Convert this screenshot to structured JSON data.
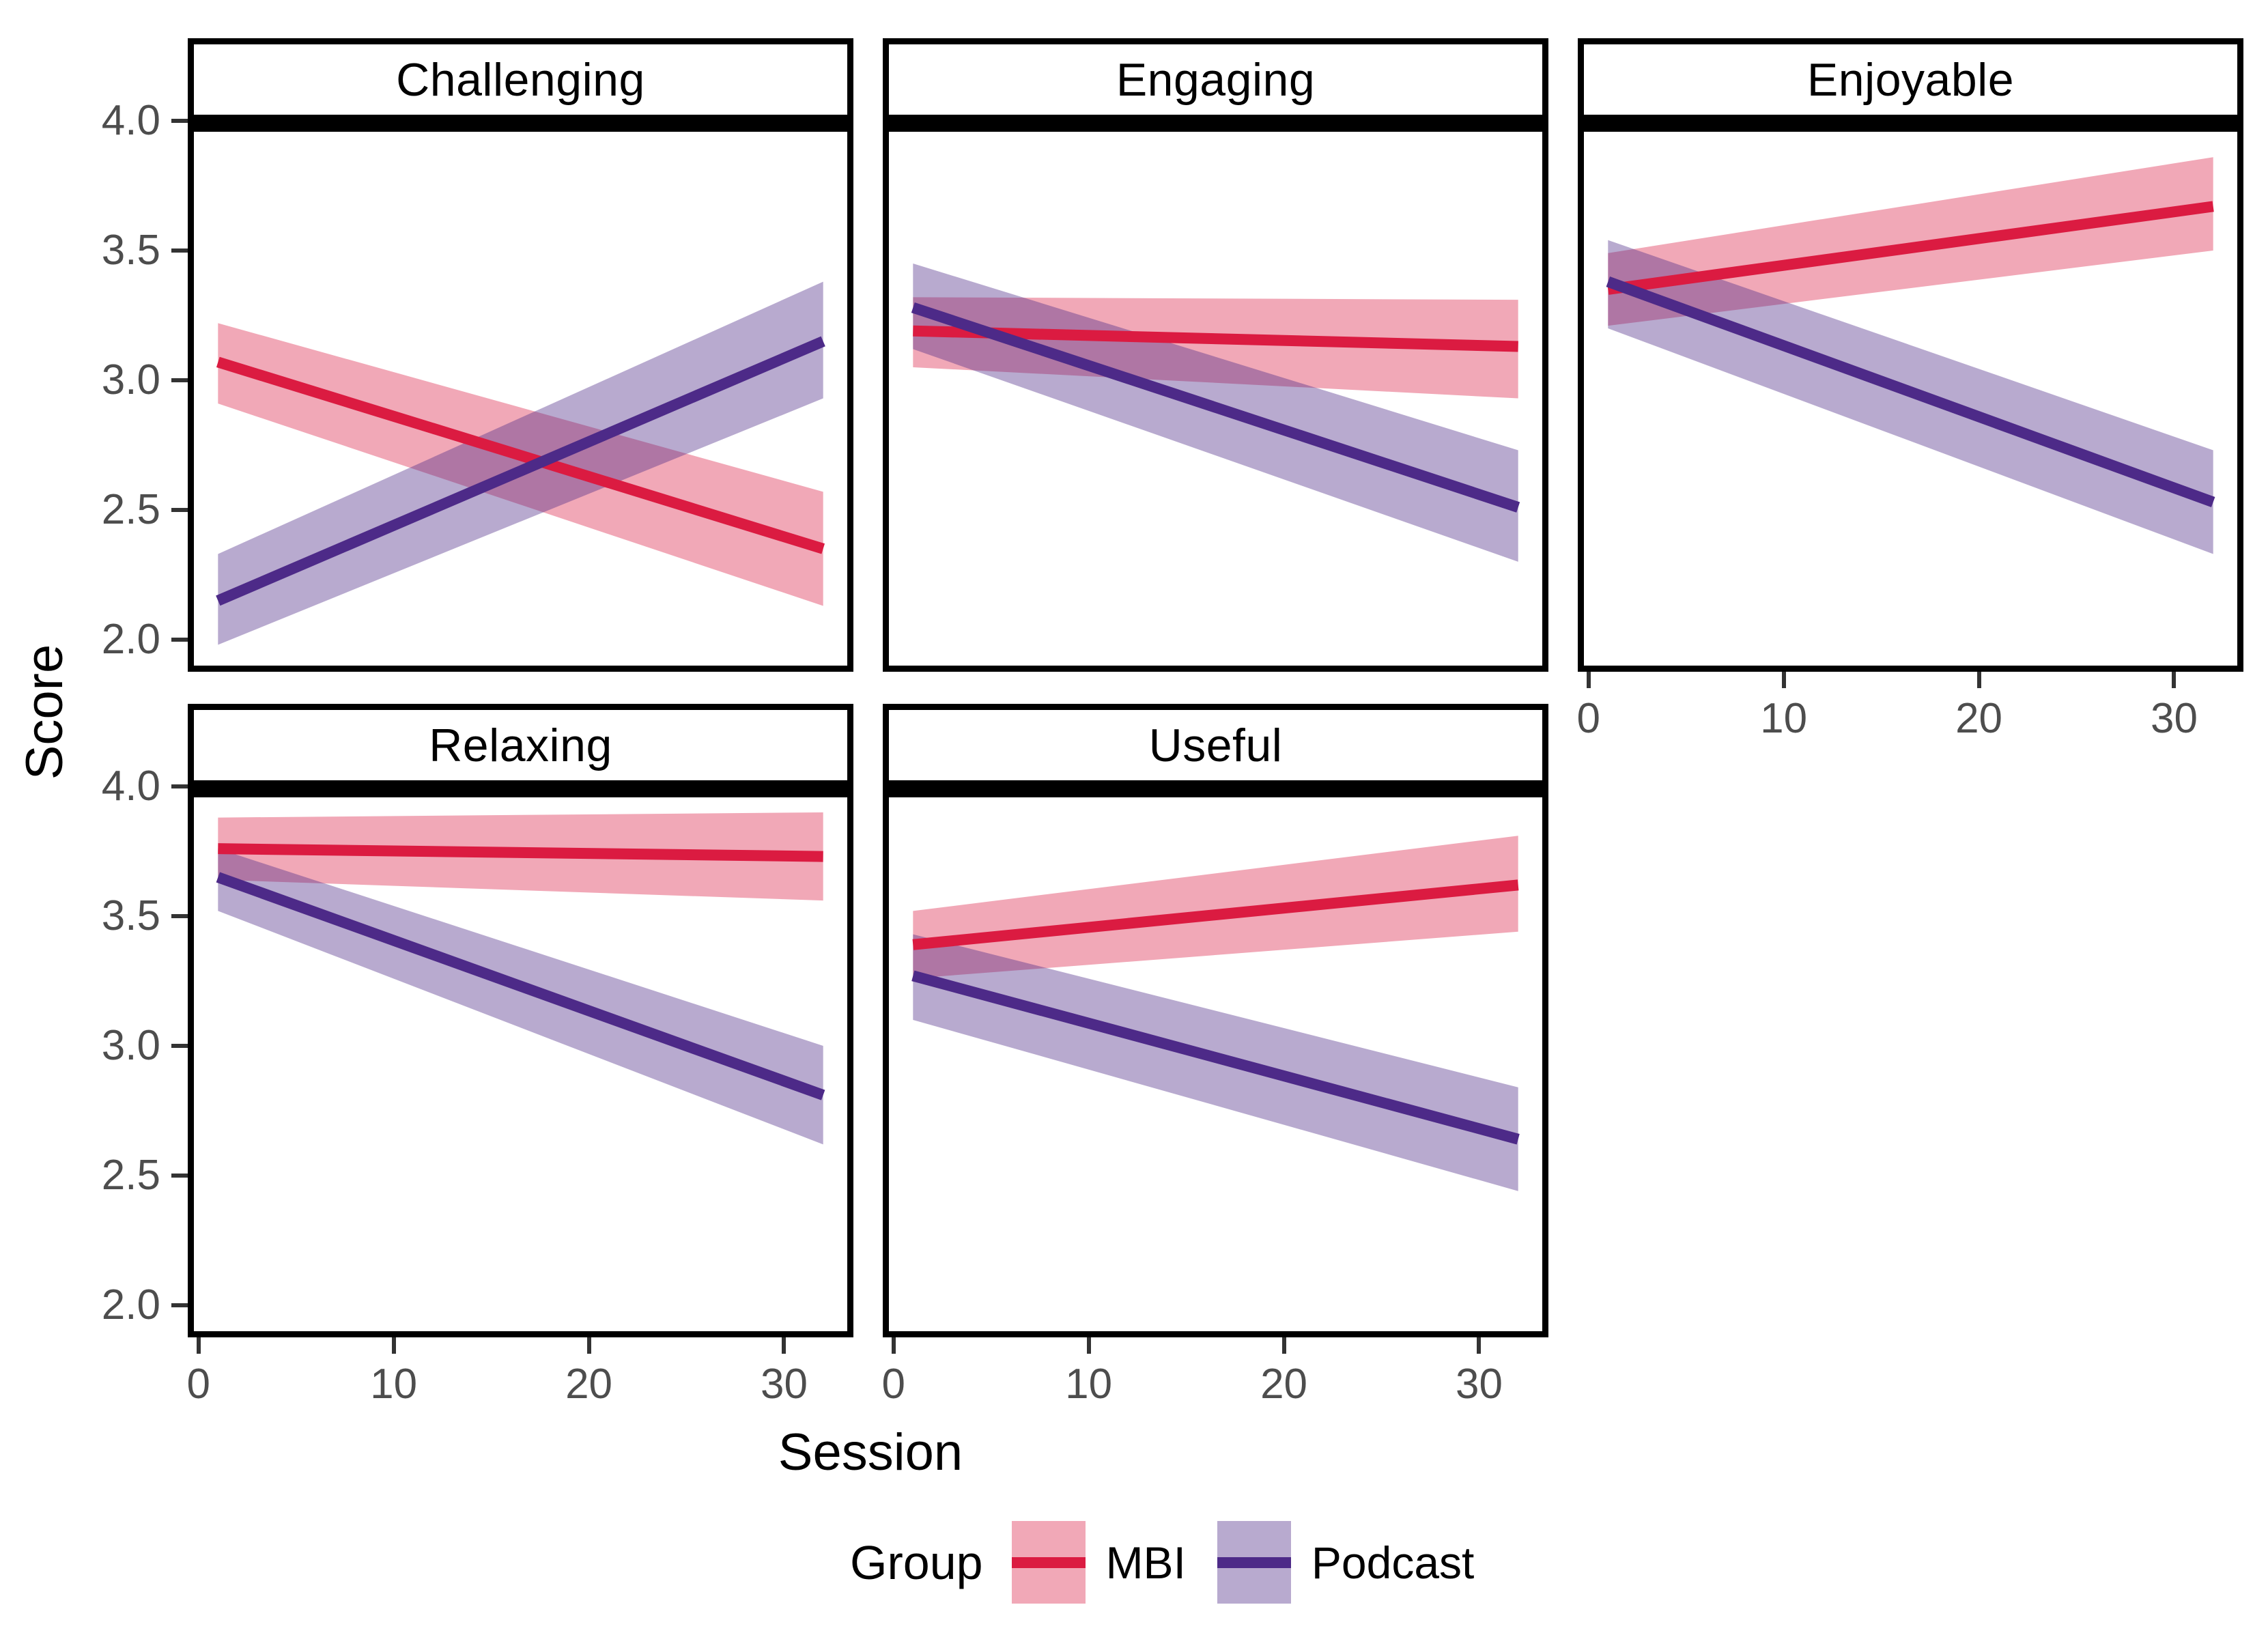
{
  "chart_data": {
    "type": "line",
    "title": "",
    "xlabel": "Session",
    "ylabel": "Score",
    "x_ticks": [
      0,
      10,
      20,
      30
    ],
    "y_ticks": [
      4.0,
      3.5,
      3.0,
      2.5,
      2.0
    ],
    "xlim": [
      -0.55,
      33.55
    ],
    "ylim": [
      1.876,
      4.0
    ],
    "grid": "off",
    "legend": {
      "title": "Group",
      "position": "bottom",
      "entries": [
        {
          "label": "MBI"
        },
        {
          "label": "Podcast"
        }
      ]
    },
    "groups": [
      {
        "name": "MBI",
        "line_color": "#DB1B41",
        "ribbon_color": "rgba(219,27,65,0.38)"
      },
      {
        "name": "Podcast",
        "line_color": "#4D2A88",
        "ribbon_color": "rgba(77,42,136,0.40)"
      }
    ],
    "facets": [
      {
        "title": "Challenging",
        "series": [
          {
            "group": "MBI",
            "x": [
              1,
              32
            ],
            "y": [
              3.07,
              2.35
            ],
            "ci_low": [
              2.91,
              2.13
            ],
            "ci_high": [
              3.22,
              2.57
            ]
          },
          {
            "group": "Podcast",
            "x": [
              1,
              32
            ],
            "y": [
              2.15,
              3.15
            ],
            "ci_low": [
              1.98,
              2.93
            ],
            "ci_high": [
              2.33,
              3.38
            ]
          }
        ]
      },
      {
        "title": "Engaging",
        "series": [
          {
            "group": "MBI",
            "x": [
              1,
              32
            ],
            "y": [
              3.19,
              3.13
            ],
            "ci_low": [
              3.05,
              2.93
            ],
            "ci_high": [
              3.32,
              3.31
            ]
          },
          {
            "group": "Podcast",
            "x": [
              1,
              32
            ],
            "y": [
              3.28,
              2.51
            ],
            "ci_low": [
              3.12,
              2.3
            ],
            "ci_high": [
              3.45,
              2.73
            ]
          }
        ]
      },
      {
        "title": "Enjoyable",
        "series": [
          {
            "group": "MBI",
            "x": [
              1,
              32
            ],
            "y": [
              3.35,
              3.67
            ],
            "ci_low": [
              3.21,
              3.5
            ],
            "ci_high": [
              3.49,
              3.86
            ]
          },
          {
            "group": "Podcast",
            "x": [
              1,
              32
            ],
            "y": [
              3.38,
              2.53
            ],
            "ci_low": [
              3.2,
              2.33
            ],
            "ci_high": [
              3.54,
              2.73
            ]
          }
        ]
      },
      {
        "title": "Relaxing",
        "series": [
          {
            "group": "MBI",
            "x": [
              1,
              32
            ],
            "y": [
              3.76,
              3.73
            ],
            "ci_low": [
              3.64,
              3.56
            ],
            "ci_high": [
              3.88,
              3.9
            ]
          },
          {
            "group": "Podcast",
            "x": [
              1,
              32
            ],
            "y": [
              3.65,
              2.81
            ],
            "ci_low": [
              3.52,
              2.62
            ],
            "ci_high": [
              3.76,
              3.0
            ]
          }
        ]
      },
      {
        "title": "Useful",
        "series": [
          {
            "group": "MBI",
            "x": [
              1,
              32
            ],
            "y": [
              3.39,
              3.62
            ],
            "ci_low": [
              3.26,
              3.44
            ],
            "ci_high": [
              3.52,
              3.81
            ]
          },
          {
            "group": "Podcast",
            "x": [
              1,
              32
            ],
            "y": [
              3.27,
              2.64
            ],
            "ci_low": [
              3.1,
              2.44
            ],
            "ci_high": [
              3.43,
              2.84
            ]
          }
        ]
      }
    ],
    "colors": {
      "tick_text": "#4d4d4d",
      "axis_text": "#000000",
      "panel_border": "#000000",
      "background": "#ffffff"
    }
  }
}
